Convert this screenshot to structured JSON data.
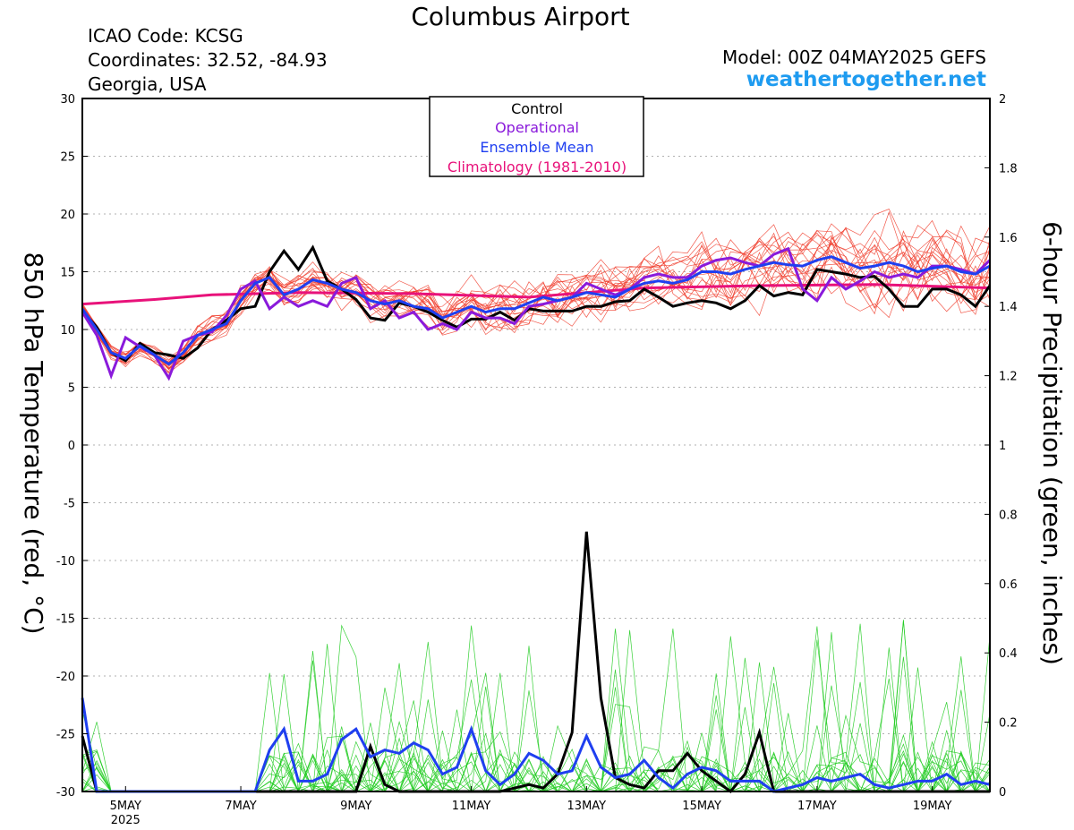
{
  "header": {
    "title": "Columbus Airport",
    "icao": "ICAO Code: KCSG",
    "coords": "Coordinates: 32.52, -84.93",
    "location": "Georgia, USA",
    "model": "Model: 00Z 04MAY2025 GEFS",
    "site": "weathertogether.net"
  },
  "chart_data": {
    "type": "line",
    "ylabel_left": "850 hPa Temperature (red, °C)",
    "ylabel_right": "6-hour Precipitation (green, inches)",
    "x_range_days": [
      4.25,
      20.0
    ],
    "y_left_range": [
      -30,
      30
    ],
    "y_right_range": [
      0,
      2
    ],
    "y_left_ticks": [
      30,
      25,
      20,
      15,
      10,
      5,
      0,
      -5,
      -10,
      -15,
      -20,
      -25,
      -30
    ],
    "y_right_ticks": [
      "2",
      "1.8",
      "1.6",
      "1.4",
      "1.2",
      "1",
      "0.8",
      "0.6",
      "0.4",
      "0.2",
      "0"
    ],
    "x_ticks": [
      {
        "day": 5,
        "label": "5MAY",
        "sub": "2025"
      },
      {
        "day": 7,
        "label": "7MAY"
      },
      {
        "day": 9,
        "label": "9MAY"
      },
      {
        "day": 11,
        "label": "11MAY"
      },
      {
        "day": 13,
        "label": "13MAY"
      },
      {
        "day": 15,
        "label": "15MAY"
      },
      {
        "day": 17,
        "label": "17MAY"
      },
      {
        "day": 19,
        "label": "19MAY"
      }
    ],
    "grid": true,
    "legend": {
      "placement": "top-center",
      "entries": [
        {
          "label": "Control",
          "color": "#000000"
        },
        {
          "label": "Operational",
          "color": "#8a1adb"
        },
        {
          "label": "Ensemble Mean",
          "color": "#1f3ff0"
        },
        {
          "label": "Climatology (1981-2010)",
          "color": "#e8127a"
        }
      ]
    },
    "series_colors": {
      "control": "#000000",
      "operational": "#8a1adb",
      "ensemble_mean": "#1f3ff0",
      "climatology": "#e8127a",
      "members_temp": "#f03c2c",
      "members_precip": "#22cc22"
    },
    "climatology_temp": {
      "day": [
        4.25,
        5.5,
        6.5,
        8.0,
        10.0,
        12.0,
        14.0,
        16.0,
        18.0,
        20.0
      ],
      "value": [
        12.2,
        12.6,
        13.0,
        13.2,
        13.1,
        12.8,
        13.6,
        13.8,
        13.9,
        13.6
      ]
    },
    "control_temp": {
      "day": [
        4.25,
        4.5,
        4.75,
        5.0,
        5.25,
        5.5,
        5.75,
        6.0,
        6.25,
        6.5,
        6.75,
        7.0,
        7.25,
        7.5,
        7.75,
        8.0,
        8.25,
        8.5,
        8.75,
        9.0,
        9.25,
        9.5,
        9.75,
        10.0,
        10.25,
        10.5,
        10.75,
        11.0,
        11.25,
        11.5,
        11.75,
        12.0,
        12.25,
        12.5,
        12.75,
        13.0,
        13.25,
        13.5,
        13.75,
        14.0,
        14.25,
        14.5,
        14.75,
        15.0,
        15.25,
        15.5,
        15.75,
        16.0,
        16.25,
        16.5,
        16.75,
        17.0,
        17.25,
        17.5,
        17.75,
        18.0,
        18.25,
        18.5,
        18.75,
        19.0,
        19.25,
        19.5,
        19.75,
        20.0
      ],
      "value": [
        11.6,
        10.2,
        8.0,
        7.3,
        8.8,
        8.0,
        7.8,
        7.5,
        8.4,
        10.0,
        10.8,
        11.8,
        12.0,
        15.0,
        16.8,
        15.2,
        17.1,
        14.2,
        13.5,
        12.6,
        11.0,
        10.8,
        12.3,
        12.0,
        11.5,
        10.8,
        10.2,
        10.9,
        10.9,
        11.5,
        10.8,
        11.8,
        11.6,
        11.6,
        11.6,
        12.0,
        12.0,
        12.4,
        12.5,
        13.5,
        12.8,
        12.0,
        12.3,
        12.5,
        12.3,
        11.8,
        12.5,
        13.8,
        12.9,
        13.2,
        13.0,
        15.2,
        15.0,
        14.8,
        14.5,
        14.6,
        13.5,
        12.0,
        12.0,
        13.5,
        13.5,
        13.0,
        12.0,
        13.8
      ]
    },
    "operational_temp": {
      "day": [
        4.25,
        4.5,
        4.75,
        5.0,
        5.25,
        5.5,
        5.75,
        6.0,
        6.25,
        6.5,
        6.75,
        7.0,
        7.25,
        7.5,
        7.75,
        8.0,
        8.25,
        8.5,
        8.75,
        9.0,
        9.25,
        9.5,
        9.75,
        10.0,
        10.25,
        10.5,
        10.75,
        11.0,
        11.25,
        11.5,
        11.75,
        12.0,
        12.25,
        12.5,
        12.75,
        13.0,
        13.25,
        13.5,
        13.75,
        14.0,
        14.25,
        14.5,
        14.75,
        15.0,
        15.25,
        15.5,
        15.75,
        16.0,
        16.25,
        16.5,
        16.75,
        17.0,
        17.25,
        17.5,
        17.75,
        18.0,
        18.25,
        18.5,
        18.75,
        19.0,
        19.25,
        19.5,
        19.75,
        20.0
      ],
      "value": [
        11.5,
        9.5,
        6.0,
        9.3,
        8.5,
        7.8,
        5.8,
        9.0,
        9.5,
        9.8,
        11.2,
        13.5,
        14.2,
        11.8,
        12.8,
        12.0,
        12.5,
        12.0,
        14.0,
        14.5,
        11.8,
        12.5,
        11.0,
        11.5,
        10.0,
        10.5,
        10.0,
        11.5,
        11.0,
        11.0,
        10.5,
        12.0,
        12.2,
        12.5,
        12.8,
        14.0,
        13.5,
        13.0,
        13.5,
        14.5,
        14.8,
        14.5,
        14.5,
        15.5,
        16.0,
        16.2,
        15.8,
        15.5,
        16.5,
        17.0,
        13.5,
        12.5,
        14.5,
        13.5,
        14.2,
        15.0,
        14.5,
        14.8,
        14.5,
        15.5,
        15.5,
        15.2,
        14.8,
        16.0
      ]
    },
    "ensemble_mean_temp": {
      "day": [
        4.25,
        4.5,
        4.75,
        5.0,
        5.25,
        5.5,
        5.75,
        6.0,
        6.25,
        6.5,
        6.75,
        7.0,
        7.25,
        7.5,
        7.75,
        8.0,
        8.25,
        8.5,
        8.75,
        9.0,
        9.25,
        9.5,
        9.75,
        10.0,
        10.25,
        10.5,
        10.75,
        11.0,
        11.25,
        11.5,
        11.75,
        12.0,
        12.25,
        12.5,
        12.75,
        13.0,
        13.25,
        13.5,
        13.75,
        14.0,
        14.25,
        14.5,
        14.75,
        15.0,
        15.25,
        15.5,
        15.75,
        16.0,
        16.25,
        16.5,
        16.75,
        17.0,
        17.25,
        17.5,
        17.75,
        18.0,
        18.25,
        18.5,
        18.75,
        19.0,
        19.25,
        19.5,
        19.75,
        20.0
      ],
      "value": [
        11.8,
        10.0,
        8.0,
        7.5,
        8.6,
        7.8,
        7.0,
        8.0,
        9.5,
        10.0,
        10.5,
        12.5,
        14.0,
        14.5,
        13.0,
        13.5,
        14.3,
        14.0,
        13.5,
        13.2,
        12.5,
        12.2,
        12.5,
        12.0,
        11.8,
        11.0,
        11.5,
        12.0,
        11.5,
        11.8,
        11.8,
        12.3,
        12.8,
        12.5,
        12.8,
        13.2,
        13.0,
        12.8,
        13.5,
        14.0,
        14.2,
        14.0,
        14.3,
        15.0,
        15.0,
        14.8,
        15.2,
        15.5,
        15.8,
        15.6,
        15.5,
        16.0,
        16.3,
        15.8,
        15.3,
        15.5,
        15.8,
        15.5,
        15.0,
        15.3,
        15.5,
        15.0,
        14.8,
        15.5
      ]
    },
    "control_precip": {
      "day": [
        4.25,
        4.5,
        5.0,
        6.0,
        7.0,
        8.0,
        8.5,
        9.0,
        9.25,
        9.5,
        9.75,
        10.0,
        11.0,
        11.5,
        12.0,
        12.25,
        12.5,
        12.75,
        13.0,
        13.25,
        13.5,
        13.75,
        14.0,
        14.25,
        14.5,
        14.75,
        15.0,
        15.25,
        15.5,
        15.75,
        16.0,
        16.25,
        16.5,
        16.75,
        17.0,
        18.0,
        19.0,
        20.0
      ],
      "value": [
        0.16,
        0.0,
        0.0,
        0.0,
        0.0,
        0.0,
        0.0,
        0.0,
        0.13,
        0.02,
        0.0,
        0.0,
        0.0,
        0.0,
        0.02,
        0.01,
        0.05,
        0.17,
        0.75,
        0.27,
        0.04,
        0.02,
        0.01,
        0.06,
        0.06,
        0.11,
        0.06,
        0.03,
        0.0,
        0.05,
        0.17,
        0.0,
        0.0,
        0.0,
        0.0,
        0.0,
        0.0,
        0.0
      ]
    },
    "ensemble_mean_precip": {
      "day": [
        4.25,
        4.5,
        5.0,
        6.0,
        6.75,
        7.0,
        7.25,
        7.5,
        7.75,
        8.0,
        8.25,
        8.5,
        8.75,
        9.0,
        9.25,
        9.5,
        9.75,
        10.0,
        10.25,
        10.5,
        10.75,
        11.0,
        11.25,
        11.5,
        11.75,
        12.0,
        12.25,
        12.5,
        12.75,
        13.0,
        13.25,
        13.5,
        13.75,
        14.0,
        14.25,
        14.5,
        14.75,
        15.0,
        15.25,
        15.5,
        15.75,
        16.0,
        16.25,
        16.5,
        16.75,
        17.0,
        17.25,
        17.5,
        17.75,
        18.0,
        18.25,
        18.5,
        18.75,
        19.0,
        19.25,
        19.5,
        19.75,
        20.0
      ],
      "value": [
        0.27,
        0.0,
        0.0,
        0.0,
        0.0,
        0.0,
        0.0,
        0.12,
        0.18,
        0.03,
        0.03,
        0.05,
        0.15,
        0.18,
        0.1,
        0.12,
        0.11,
        0.14,
        0.12,
        0.05,
        0.07,
        0.18,
        0.06,
        0.02,
        0.05,
        0.11,
        0.09,
        0.05,
        0.06,
        0.16,
        0.07,
        0.04,
        0.05,
        0.09,
        0.04,
        0.01,
        0.05,
        0.07,
        0.06,
        0.03,
        0.03,
        0.03,
        0.0,
        0.01,
        0.02,
        0.04,
        0.03,
        0.04,
        0.05,
        0.02,
        0.01,
        0.02,
        0.03,
        0.03,
        0.05,
        0.02,
        0.03,
        0.02
      ]
    }
  }
}
